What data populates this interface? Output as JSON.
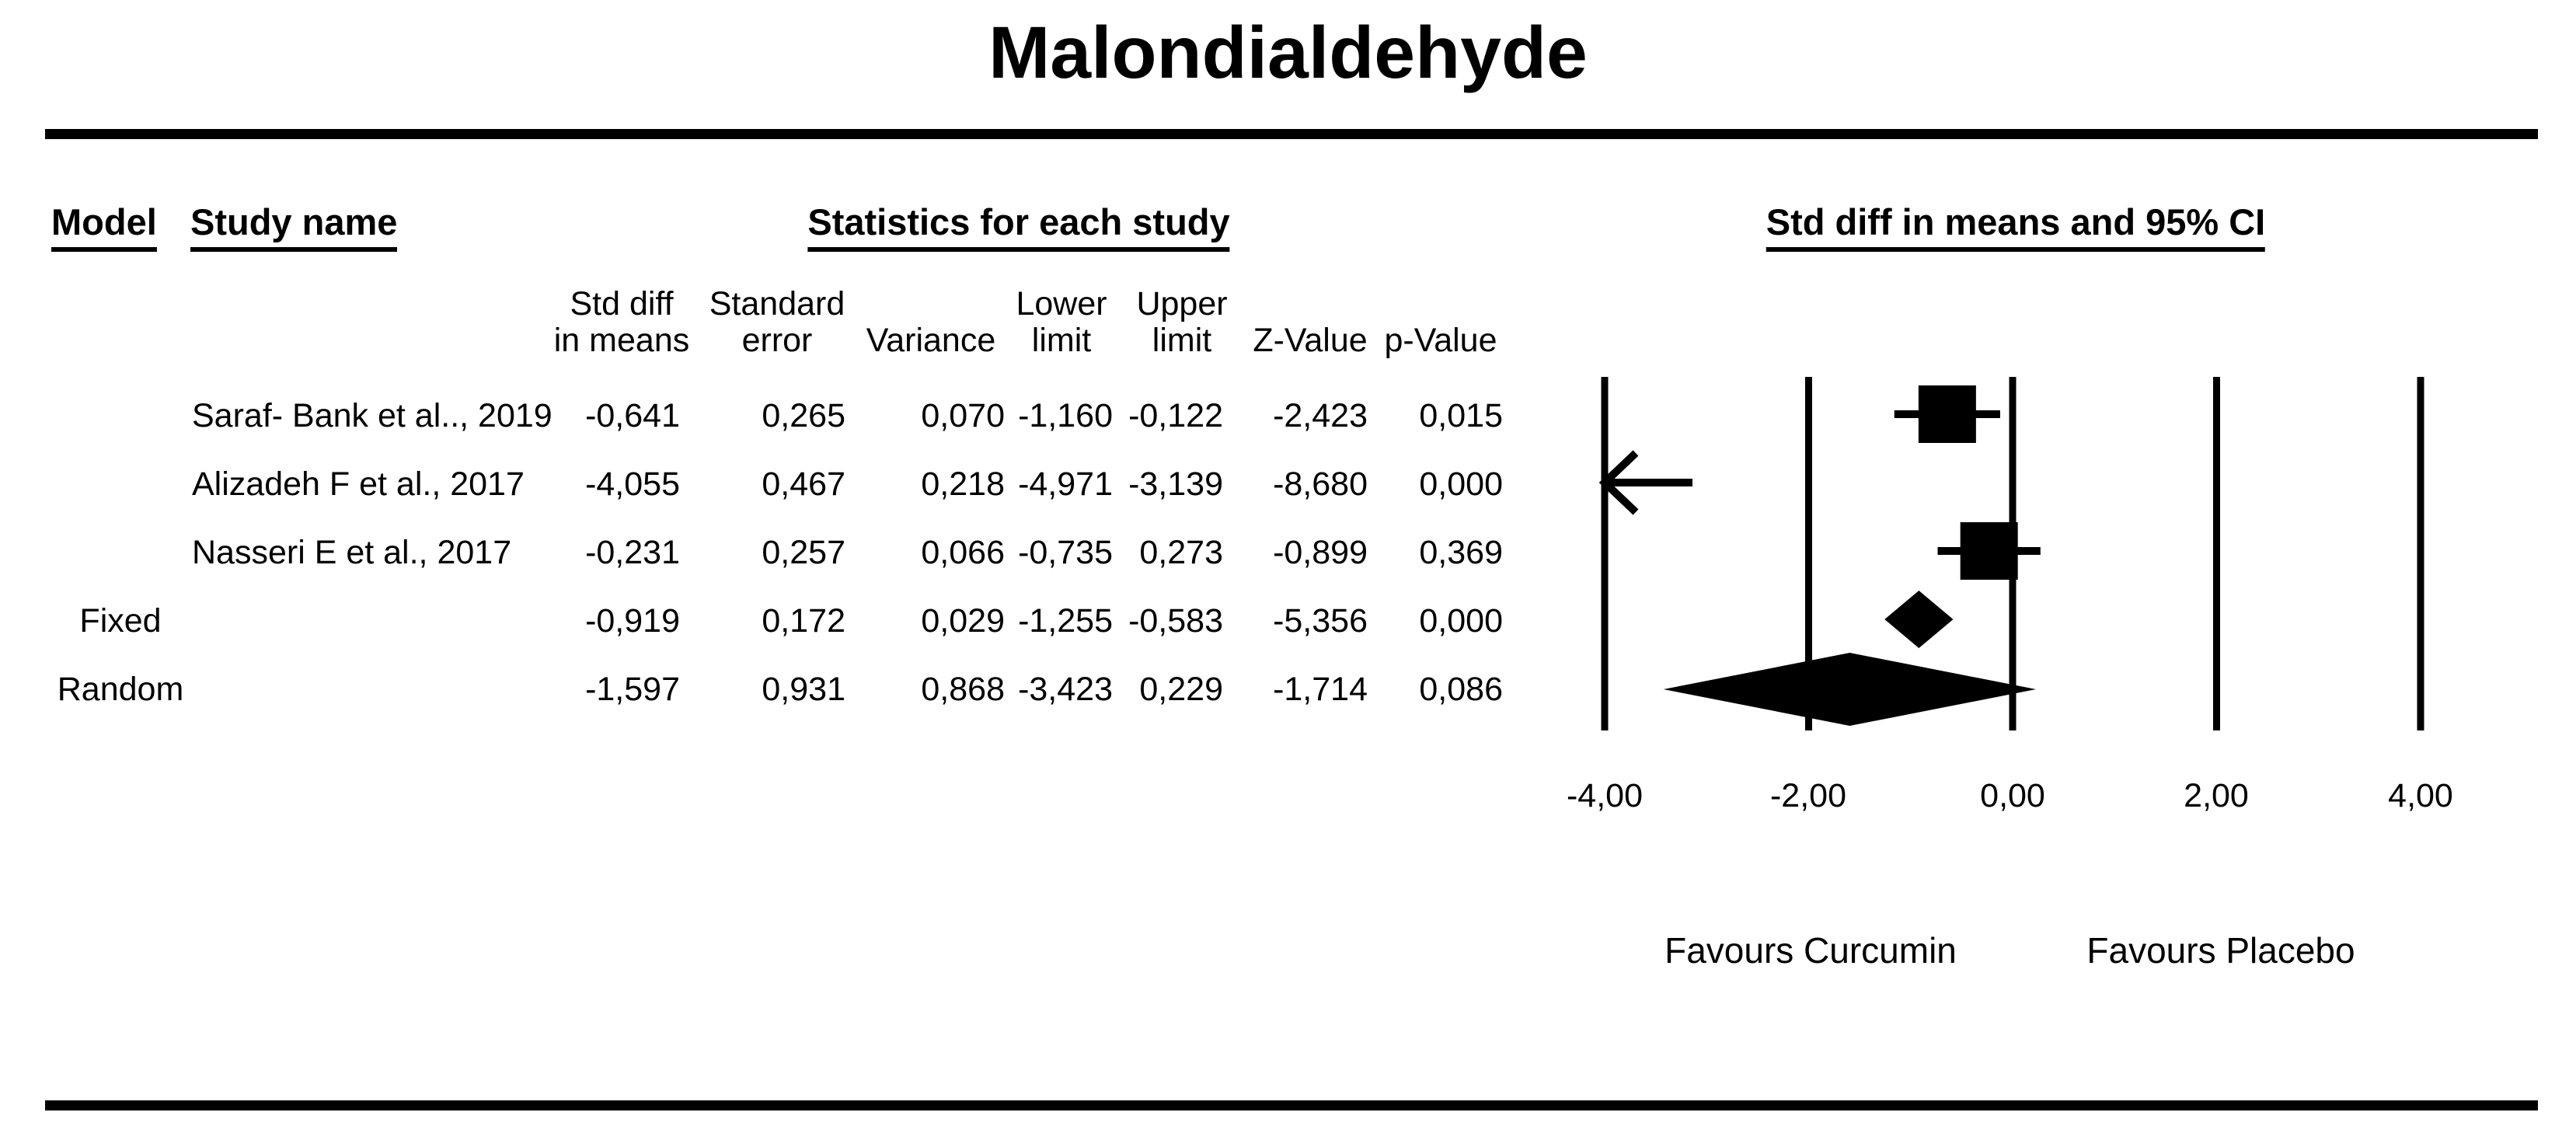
{
  "title": "Malondialdehyde",
  "colors": {
    "ink": "#000000",
    "background": "#ffffff"
  },
  "table": {
    "col_headers": {
      "model": "Model",
      "study": "Study name",
      "stats_group": "Statistics for each study"
    },
    "stat_cols": [
      {
        "line1": "Std diff",
        "line2": "in means"
      },
      {
        "line1": "Standard",
        "line2": "error"
      },
      {
        "line1": "",
        "line2": "Variance"
      },
      {
        "line1": "Lower",
        "line2": "limit"
      },
      {
        "line1": "Upper",
        "line2": "limit"
      },
      {
        "line1": "",
        "line2": "Z-Value"
      },
      {
        "line1": "",
        "line2": "p-Value"
      }
    ],
    "rows": [
      {
        "model": "",
        "study": "Saraf- Bank et al.., 2019",
        "std_diff": "-0,641",
        "std_err": "0,265",
        "variance": "0,070",
        "lower": "-1,160",
        "upper": "-0,122",
        "z": "-2,423",
        "p": "0,015"
      },
      {
        "model": "",
        "study": "Alizadeh F et al., 2017",
        "std_diff": "-4,055",
        "std_err": "0,467",
        "variance": "0,218",
        "lower": "-4,971",
        "upper": "-3,139",
        "z": "-8,680",
        "p": "0,000"
      },
      {
        "model": "",
        "study": "Nasseri E et al., 2017",
        "std_diff": "-0,231",
        "std_err": "0,257",
        "variance": "0,066",
        "lower": "-0,735",
        "upper": "0,273",
        "z": "-0,899",
        "p": "0,369"
      },
      {
        "model": "Fixed",
        "study": "",
        "std_diff": "-0,919",
        "std_err": "0,172",
        "variance": "0,029",
        "lower": "-1,255",
        "upper": "-0,583",
        "z": "-5,356",
        "p": "0,000"
      },
      {
        "model": "Random",
        "study": "",
        "std_diff": "-1,597",
        "std_err": "0,931",
        "variance": "0,868",
        "lower": "-3,423",
        "upper": "0,229",
        "z": "-1,714",
        "p": "0,086"
      }
    ]
  },
  "plot": {
    "header": "Std diff in means and 95% CI",
    "axis_ticks": [
      "-4,00",
      "-2,00",
      "0,00",
      "2,00",
      "4,00"
    ],
    "footer_left": "Favours Curcumin",
    "footer_right": "Favours Placebo"
  },
  "chart_data": {
    "type": "forest",
    "title": "Malondialdehyde",
    "effect_measure": "Std diff in means and 95% CI",
    "xlim": [
      -4,
      4
    ],
    "gridlines": [
      -4,
      -2,
      0,
      2,
      4
    ],
    "tick_labels": [
      "-4,00",
      "-2,00",
      "0,00",
      "2,00",
      "4,00"
    ],
    "footnote_left": "Favours Curcumin",
    "footnote_right": "Favours Placebo",
    "rows": [
      {
        "label": "Saraf- Bank et al.., 2019",
        "estimate": -0.641,
        "lower": -1.16,
        "upper": -0.122,
        "z": -2.423,
        "p": 0.015,
        "marker": "square",
        "marker_size": 74
      },
      {
        "label": "Alizadeh F et al., 2017",
        "estimate": -4.055,
        "lower": -4.971,
        "upper": -3.139,
        "z": -8.68,
        "p": 0.0,
        "marker": "arrow-left"
      },
      {
        "label": "Nasseri E et al., 2017",
        "estimate": -0.231,
        "lower": -0.735,
        "upper": 0.273,
        "z": -0.899,
        "p": 0.369,
        "marker": "square",
        "marker_size": 74
      },
      {
        "label": "Fixed",
        "estimate": -0.919,
        "lower": -1.255,
        "upper": -0.583,
        "z": -5.356,
        "p": 0.0,
        "marker": "diamond",
        "half_height": 37
      },
      {
        "label": "Random",
        "estimate": -1.597,
        "lower": -3.423,
        "upper": 0.229,
        "z": -1.714,
        "p": 0.086,
        "marker": "diamond",
        "half_height": 47
      }
    ]
  }
}
